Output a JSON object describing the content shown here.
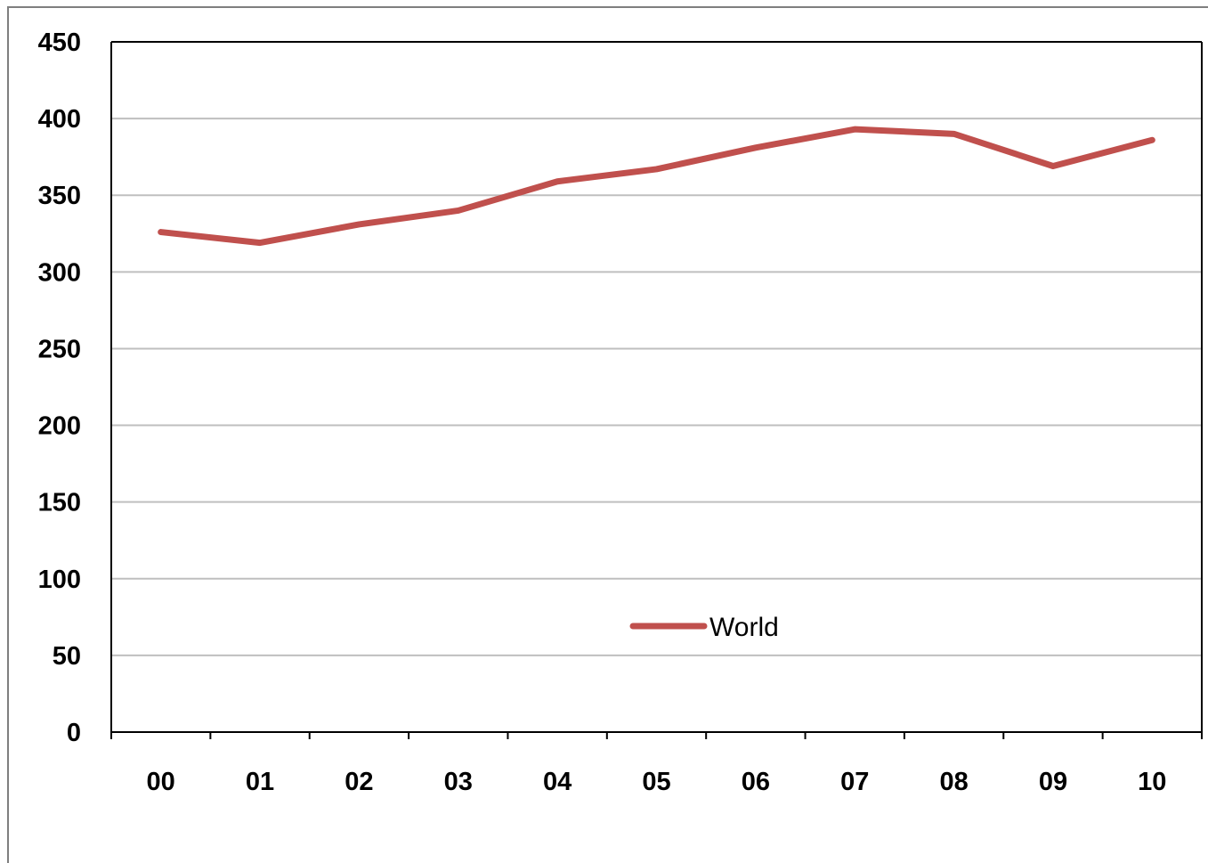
{
  "chart_data": {
    "type": "line",
    "title": "",
    "xlabel": "",
    "ylabel": "",
    "categories": [
      "00",
      "01",
      "02",
      "03",
      "04",
      "05",
      "06",
      "07",
      "08",
      "09",
      "10"
    ],
    "series": [
      {
        "name": "World",
        "color": "#c0504d",
        "values": [
          326,
          319,
          331,
          340,
          359,
          367,
          381,
          393,
          390,
          369,
          386
        ]
      }
    ],
    "ylim": [
      0,
      450
    ],
    "yticks": [
      0,
      50,
      100,
      150,
      200,
      250,
      300,
      350,
      400,
      450
    ],
    "grid": true,
    "legend_position": "center-bottom"
  }
}
